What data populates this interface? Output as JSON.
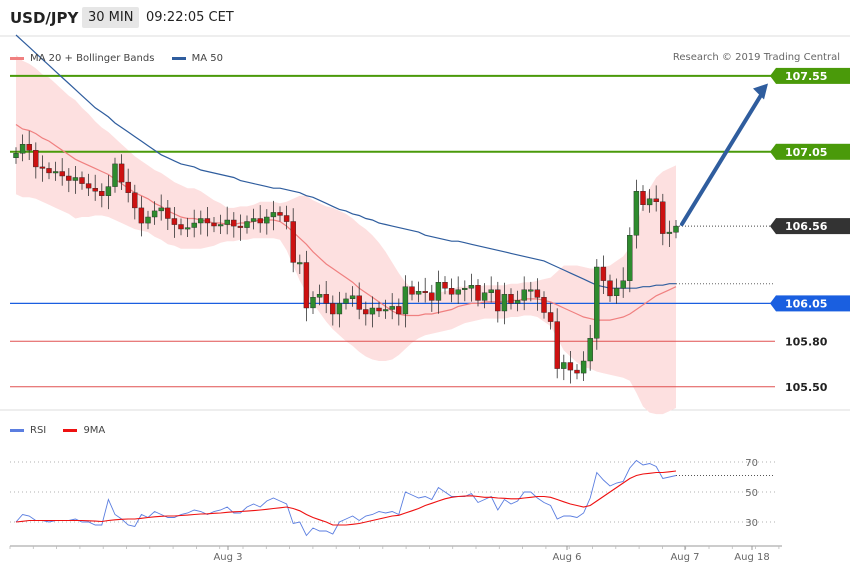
{
  "header": {
    "symbol": "USD/JPY",
    "interval": "30 MIN",
    "time": "09:22:05 CET"
  },
  "legend": {
    "ma20_label": "MA 20 + Bollinger Bands",
    "ma50_label": "MA 50",
    "rsi_label": "RSI",
    "rsi_ma_label": "9MA"
  },
  "credit": "Research © 2019 Trading Central",
  "colors": {
    "up": "#2e8b2e",
    "down": "#cc1111",
    "ma20": "#f08080",
    "ma50": "#2f5d9e",
    "band": "#fde0e0",
    "green_level": "#4a9a0a",
    "blue_level": "#1a5fe0",
    "red_level": "#e05050",
    "arrow": "#2f5d9e",
    "rsi": "#5b7ee0",
    "rsi_ma": "#ee1111"
  },
  "chart_data": [
    {
      "type": "candlestick",
      "title": "USD/JPY 30 MIN",
      "ylim": [
        105.38,
        107.82
      ],
      "x_labels": [
        "Aug 3",
        "Aug 6",
        "Aug 7",
        "Aug 18"
      ],
      "levels": [
        {
          "value": 107.55,
          "label": "107.55",
          "style": "green"
        },
        {
          "value": 107.05,
          "label": "107.05",
          "style": "green"
        },
        {
          "value": 106.56,
          "label": "106.56",
          "style": "current"
        },
        {
          "value": 106.05,
          "label": "106.05",
          "style": "blue"
        },
        {
          "value": 105.8,
          "label": "105.80",
          "style": "red"
        },
        {
          "value": 105.5,
          "label": "105.50",
          "style": "red"
        }
      ],
      "target_arrow": {
        "from": 106.56,
        "to": 107.52
      },
      "closes": [
        107.04,
        107.1,
        107.06,
        106.95,
        106.94,
        106.91,
        106.92,
        106.89,
        106.86,
        106.88,
        106.84,
        106.81,
        106.79,
        106.76,
        106.82,
        106.97,
        106.85,
        106.78,
        106.68,
        106.58,
        106.62,
        106.66,
        106.68,
        106.61,
        106.57,
        106.54,
        106.55,
        106.58,
        106.61,
        106.58,
        106.56,
        106.57,
        106.6,
        106.56,
        106.55,
        106.59,
        106.61,
        106.58,
        106.62,
        106.65,
        106.63,
        106.59,
        106.32,
        106.32,
        106.02,
        106.09,
        106.11,
        106.05,
        105.98,
        106.05,
        106.08,
        106.1,
        106.01,
        105.98,
        106.02,
        106.0,
        106.01,
        106.03,
        105.98,
        106.16,
        106.11,
        106.13,
        106.12,
        106.07,
        106.19,
        106.15,
        106.11,
        106.14,
        106.15,
        106.17,
        106.07,
        106.12,
        106.14,
        106.0,
        106.11,
        106.05,
        106.07,
        106.14,
        106.14,
        106.09,
        105.99,
        105.93,
        105.62,
        105.66,
        105.61,
        105.59,
        105.67,
        105.82,
        106.29,
        106.2,
        106.1,
        106.15,
        106.2,
        106.5,
        106.79,
        106.7,
        106.74,
        106.72,
        106.51,
        106.52,
        106.56
      ],
      "ma20": [
        107.23,
        107.2,
        107.19,
        107.17,
        107.14,
        107.12,
        107.09,
        107.06,
        107.03,
        107.0,
        106.98,
        106.96,
        106.94,
        106.92,
        106.9,
        106.87,
        106.84,
        106.81,
        106.78,
        106.76,
        106.74,
        106.71,
        106.69,
        106.66,
        106.64,
        106.62,
        106.61,
        106.61,
        106.6,
        106.59,
        106.58,
        106.58,
        106.57,
        106.57,
        106.58,
        106.58,
        106.59,
        106.6,
        106.6,
        106.6,
        106.59,
        106.56,
        106.52,
        106.48,
        106.44,
        106.39,
        106.35,
        106.31,
        106.28,
        106.25,
        106.22,
        106.19,
        106.15,
        106.12,
        106.09,
        106.06,
        106.03,
        106.0,
        105.98,
        105.97,
        105.97,
        105.97,
        105.98,
        105.98,
        105.99,
        106.0,
        106.01,
        106.03,
        106.04,
        106.05,
        106.05,
        106.06,
        106.06,
        106.06,
        106.06,
        106.07,
        106.07,
        106.08,
        106.08,
        106.08,
        106.07,
        106.06,
        106.04,
        106.02,
        106.0,
        105.98,
        105.96,
        105.95,
        105.94,
        105.94,
        105.94,
        105.95,
        105.96,
        105.98,
        106.01,
        106.04,
        106.07,
        106.1,
        106.12,
        106.14,
        106.16
      ],
      "ma50": [
        107.82,
        107.78,
        107.74,
        107.7,
        107.66,
        107.62,
        107.58,
        107.54,
        107.5,
        107.46,
        107.42,
        107.38,
        107.34,
        107.31,
        107.28,
        107.24,
        107.21,
        107.18,
        107.15,
        107.12,
        107.09,
        107.06,
        107.03,
        107.01,
        106.99,
        106.97,
        106.96,
        106.95,
        106.93,
        106.92,
        106.91,
        106.9,
        106.89,
        106.88,
        106.86,
        106.85,
        106.84,
        106.83,
        106.82,
        106.81,
        106.81,
        106.8,
        106.79,
        106.78,
        106.76,
        106.75,
        106.73,
        106.71,
        106.69,
        106.67,
        106.66,
        106.64,
        106.63,
        106.61,
        106.6,
        106.58,
        106.57,
        106.56,
        106.55,
        106.54,
        106.53,
        106.52,
        106.5,
        106.49,
        106.48,
        106.47,
        106.46,
        106.46,
        106.45,
        106.44,
        106.43,
        106.42,
        106.41,
        106.4,
        106.39,
        106.38,
        106.37,
        106.36,
        106.35,
        106.34,
        106.33,
        106.31,
        106.29,
        106.27,
        106.25,
        106.23,
        106.21,
        106.19,
        106.17,
        106.16,
        106.15,
        106.15,
        106.15,
        106.15,
        106.15,
        106.16,
        106.16,
        106.17,
        106.17,
        106.18,
        106.18
      ],
      "band_width": [
        0.46,
        0.45,
        0.44,
        0.43,
        0.42,
        0.42,
        0.41,
        0.4,
        0.39,
        0.39,
        0.36,
        0.34,
        0.31,
        0.29,
        0.28,
        0.27,
        0.26,
        0.25,
        0.24,
        0.23,
        0.22,
        0.22,
        0.22,
        0.22,
        0.21,
        0.21,
        0.2,
        0.2,
        0.19,
        0.17,
        0.15,
        0.13,
        0.11,
        0.11,
        0.11,
        0.11,
        0.11,
        0.12,
        0.12,
        0.12,
        0.12,
        0.16,
        0.22,
        0.28,
        0.32,
        0.34,
        0.36,
        0.38,
        0.4,
        0.41,
        0.42,
        0.42,
        0.42,
        0.42,
        0.41,
        0.39,
        0.36,
        0.32,
        0.27,
        0.22,
        0.18,
        0.15,
        0.14,
        0.13,
        0.13,
        0.13,
        0.13,
        0.13,
        0.12,
        0.12,
        0.11,
        0.11,
        0.11,
        0.11,
        0.11,
        0.11,
        0.11,
        0.11,
        0.11,
        0.12,
        0.14,
        0.16,
        0.22,
        0.28,
        0.3,
        0.32,
        0.33,
        0.33,
        0.34,
        0.35,
        0.36,
        0.38,
        0.4,
        0.44,
        0.55,
        0.67,
        0.74,
        0.78,
        0.8,
        0.8,
        0.8
      ]
    },
    {
      "type": "line",
      "title": "RSI",
      "ylim": [
        18,
        78
      ],
      "ticks": [
        70,
        50,
        30
      ],
      "series": [
        {
          "name": "RSI",
          "values": [
            30,
            35,
            34,
            31,
            31,
            30,
            31,
            31,
            31,
            32,
            30,
            30,
            28,
            28,
            45,
            35,
            32,
            28,
            27,
            35,
            33,
            37,
            35,
            33,
            33,
            35,
            36,
            38,
            37,
            35,
            37,
            38,
            40,
            36,
            36,
            40,
            42,
            40,
            44,
            46,
            44,
            42,
            29,
            30,
            21,
            26,
            24,
            24,
            22,
            30,
            32,
            34,
            31,
            34,
            35,
            37,
            36,
            37,
            35,
            50,
            48,
            46,
            47,
            45,
            53,
            50,
            47,
            47,
            47,
            49,
            43,
            45,
            47,
            38,
            45,
            42,
            44,
            50,
            50,
            46,
            43,
            41,
            32,
            34,
            34,
            33,
            36,
            46,
            63,
            58,
            54,
            56,
            57,
            66,
            71,
            68,
            69,
            67,
            59,
            60,
            61
          ]
        },
        {
          "name": "9MA",
          "values": [
            30,
            30.5,
            31,
            31,
            31,
            31,
            31,
            31,
            31,
            31,
            31,
            30.8,
            30.6,
            30.3,
            31,
            31.5,
            31.8,
            32,
            32,
            32.5,
            33,
            33.5,
            33.8,
            34,
            34,
            34.3,
            34.6,
            35,
            35.3,
            35.5,
            35.8,
            36,
            36.5,
            36.8,
            37,
            37.3,
            37.6,
            38,
            38.5,
            39,
            39.5,
            40,
            39,
            37.5,
            35,
            33,
            31.5,
            30,
            28,
            28,
            28,
            28.5,
            29,
            30,
            31,
            32,
            33,
            34,
            34.5,
            36,
            37.5,
            39,
            41,
            42.5,
            44,
            45.5,
            46.5,
            47,
            47.3,
            47.5,
            47,
            46.5,
            46.5,
            46,
            45.8,
            45.5,
            45.5,
            46,
            46.5,
            47,
            47,
            46.5,
            45,
            43.5,
            42,
            41,
            40,
            41,
            44,
            47,
            50,
            53,
            56,
            59,
            61,
            62,
            62.5,
            63,
            63,
            63.5,
            64
          ]
        },
        {
          "name": "current_rsi_level",
          "values": [
            61
          ]
        }
      ]
    }
  ]
}
